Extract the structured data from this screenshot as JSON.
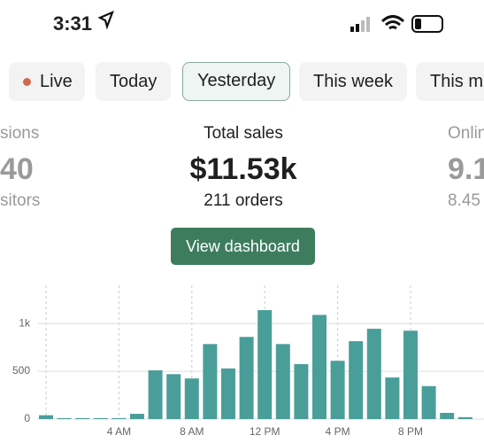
{
  "status_bar": {
    "time": "3:31"
  },
  "tabs": [
    "Live",
    "Today",
    "Yesterday",
    "This week",
    "This m"
  ],
  "metrics": [
    {
      "label": "sions",
      "value": "40",
      "sub": "sitors"
    },
    {
      "label": "Total sales",
      "value": "$11.53k",
      "sub": "211 orders"
    },
    {
      "label": "Onlin",
      "value": "9.1",
      "sub": "8.45"
    }
  ],
  "button": "View dashboard",
  "chart_data": {
    "type": "bar",
    "categories": [
      null,
      null,
      null,
      null,
      "4 AM",
      null,
      null,
      null,
      "8 AM",
      null,
      null,
      null,
      "12 PM",
      null,
      null,
      null,
      "4 PM",
      null,
      null,
      null,
      "8 PM",
      null,
      null,
      null
    ],
    "values": [
      40,
      10,
      10,
      10,
      10,
      55,
      510,
      470,
      425,
      785,
      530,
      860,
      1140,
      785,
      575,
      1090,
      610,
      815,
      945,
      435,
      925,
      345,
      65,
      20
    ],
    "color": "#4a9e9a",
    "ylim": [
      0,
      1400
    ],
    "yticks": [
      0,
      500,
      {
        "value": 1000,
        "label": "1k"
      }
    ],
    "grid": true
  }
}
